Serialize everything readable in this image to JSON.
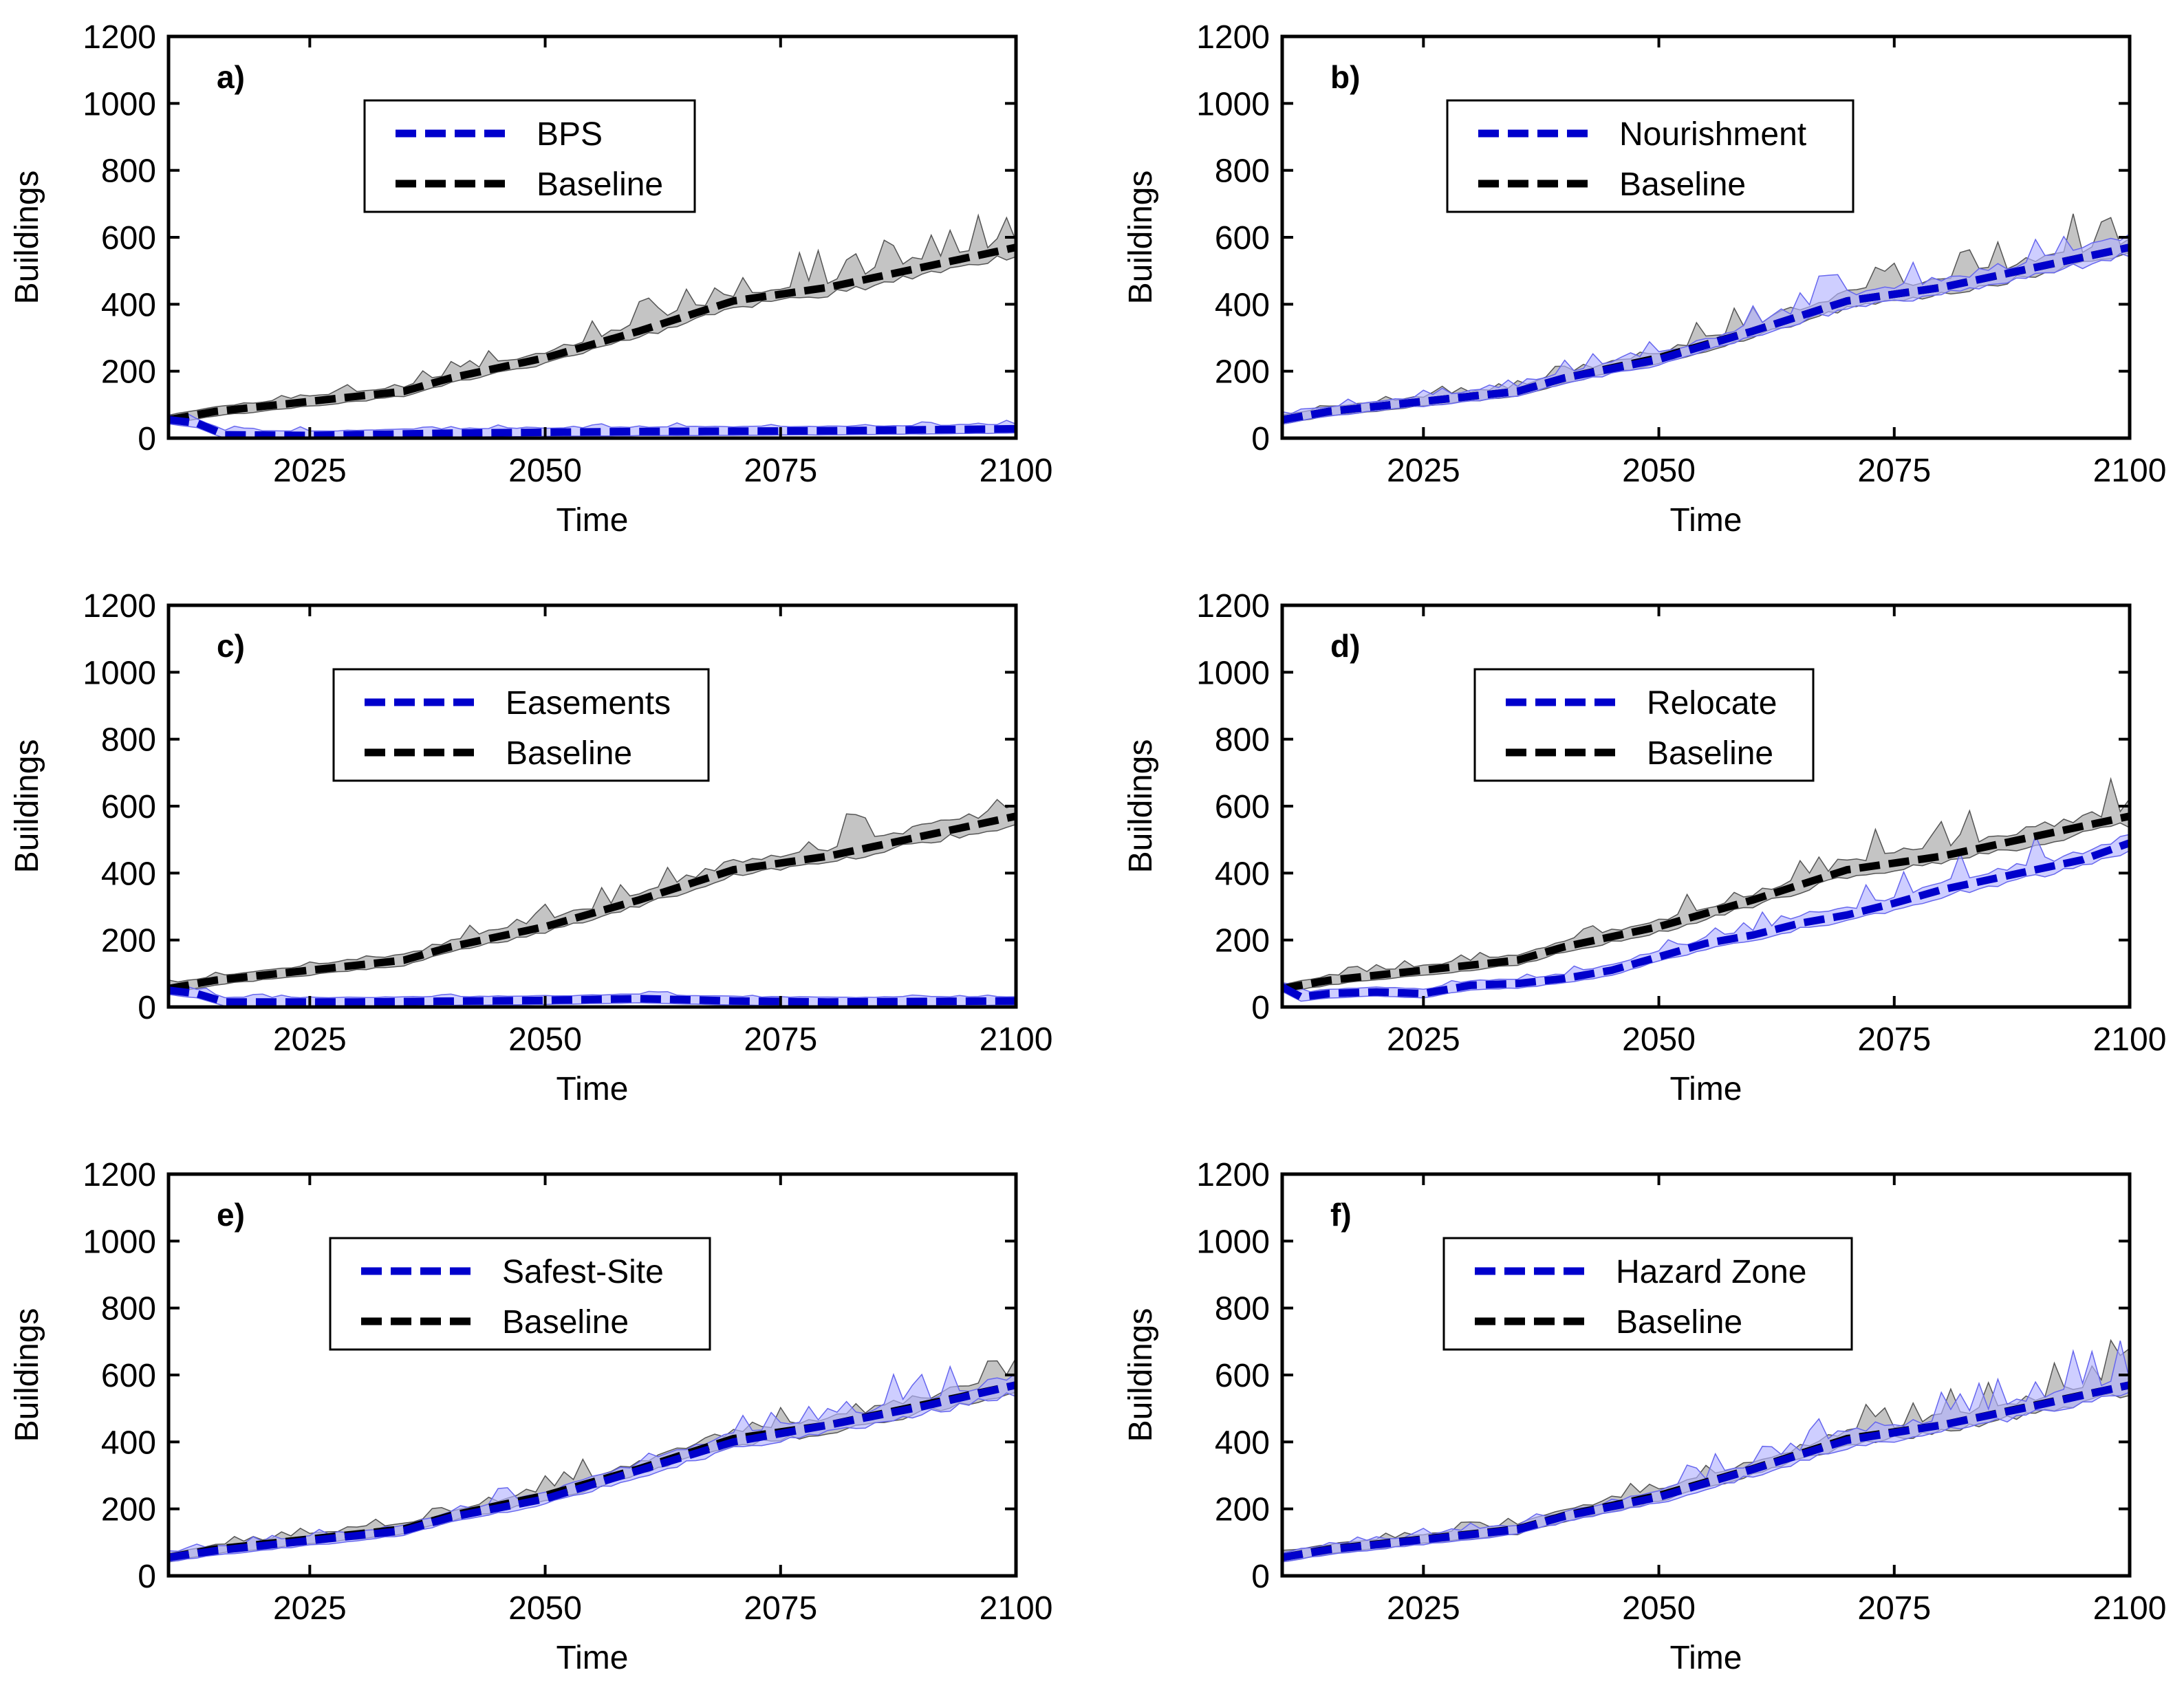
{
  "figure": {
    "shared": {
      "xlabel": "Time",
      "ylabel": "Buildings",
      "xlim": [
        2010,
        2100
      ],
      "ylim": [
        0,
        1200
      ],
      "xticks": [
        2025,
        2050,
        2075,
        2100
      ],
      "yticks": [
        0,
        200,
        400,
        600,
        800,
        1000,
        1200
      ],
      "colors": {
        "scenario": "#0000cc",
        "scenario_band": "#b4b4ff",
        "baseline": "#000000",
        "baseline_band": "#b0b0b0"
      }
    }
  },
  "chart_data": [
    {
      "type": "line",
      "panel": "a)",
      "legend_position": "upper-left",
      "series": [
        {
          "name": "BPS",
          "x": [
            2010,
            2013,
            2016,
            2025,
            2040,
            2060,
            2080,
            2100
          ],
          "y": [
            55,
            45,
            10,
            8,
            15,
            20,
            22,
            28
          ]
        },
        {
          "name": "Baseline",
          "x": [
            2010,
            2015,
            2025,
            2035,
            2040,
            2050,
            2060,
            2070,
            2080,
            2090,
            2100
          ],
          "y": [
            55,
            80,
            110,
            140,
            180,
            240,
            320,
            410,
            450,
            510,
            570
          ]
        }
      ]
    },
    {
      "type": "line",
      "panel": "b)",
      "legend_position": "upper-left",
      "series": [
        {
          "name": "Nourishment",
          "x": [
            2010,
            2015,
            2025,
            2035,
            2040,
            2050,
            2060,
            2070,
            2080,
            2090,
            2100
          ],
          "y": [
            55,
            80,
            110,
            140,
            180,
            235,
            320,
            410,
            450,
            510,
            570
          ]
        },
        {
          "name": "Baseline",
          "x": [
            2010,
            2015,
            2025,
            2035,
            2040,
            2050,
            2060,
            2070,
            2080,
            2090,
            2100
          ],
          "y": [
            55,
            80,
            110,
            140,
            180,
            240,
            320,
            410,
            450,
            510,
            570
          ]
        }
      ]
    },
    {
      "type": "line",
      "panel": "c)",
      "legend_position": "upper-left",
      "series": [
        {
          "name": "Easements",
          "x": [
            2010,
            2013,
            2016,
            2030,
            2050,
            2060,
            2070,
            2080,
            2100
          ],
          "y": [
            50,
            40,
            15,
            15,
            20,
            25,
            18,
            15,
            18
          ]
        },
        {
          "name": "Baseline",
          "x": [
            2010,
            2015,
            2025,
            2035,
            2040,
            2050,
            2060,
            2070,
            2080,
            2090,
            2100
          ],
          "y": [
            55,
            80,
            110,
            140,
            180,
            240,
            320,
            410,
            450,
            510,
            570
          ]
        }
      ]
    },
    {
      "type": "line",
      "panel": "d)",
      "legend_position": "upper-left",
      "series": [
        {
          "name": "Relocate",
          "x": [
            2010,
            2012,
            2015,
            2020,
            2025,
            2030,
            2035,
            2040,
            2045,
            2050,
            2055,
            2060,
            2065,
            2070,
            2075,
            2080,
            2085,
            2090,
            2095,
            2100
          ],
          "y": [
            60,
            30,
            40,
            45,
            40,
            65,
            70,
            85,
            110,
            150,
            190,
            215,
            250,
            275,
            310,
            350,
            380,
            410,
            440,
            490
          ]
        },
        {
          "name": "Baseline",
          "x": [
            2010,
            2015,
            2025,
            2035,
            2040,
            2050,
            2060,
            2070,
            2080,
            2090,
            2100
          ],
          "y": [
            55,
            80,
            110,
            140,
            180,
            240,
            320,
            410,
            450,
            510,
            570
          ]
        }
      ]
    },
    {
      "type": "line",
      "panel": "e)",
      "legend_position": "upper-left",
      "series": [
        {
          "name": "Safest-Site",
          "x": [
            2010,
            2015,
            2025,
            2035,
            2040,
            2050,
            2060,
            2070,
            2080,
            2090,
            2100
          ],
          "y": [
            55,
            75,
            105,
            135,
            175,
            230,
            315,
            400,
            450,
            505,
            570
          ]
        },
        {
          "name": "Baseline",
          "x": [
            2010,
            2015,
            2025,
            2035,
            2040,
            2050,
            2060,
            2070,
            2080,
            2090,
            2100
          ],
          "y": [
            55,
            80,
            110,
            140,
            180,
            240,
            320,
            410,
            450,
            510,
            570
          ]
        }
      ]
    },
    {
      "type": "line",
      "panel": "f)",
      "legend_position": "upper-left",
      "series": [
        {
          "name": "Hazard Zone",
          "x": [
            2010,
            2015,
            2025,
            2035,
            2040,
            2050,
            2060,
            2070,
            2080,
            2090,
            2100
          ],
          "y": [
            55,
            78,
            108,
            138,
            178,
            235,
            318,
            405,
            450,
            508,
            570
          ]
        },
        {
          "name": "Baseline",
          "x": [
            2010,
            2015,
            2025,
            2035,
            2040,
            2050,
            2060,
            2070,
            2080,
            2090,
            2100
          ],
          "y": [
            55,
            80,
            110,
            140,
            180,
            240,
            320,
            410,
            450,
            510,
            570
          ]
        }
      ]
    }
  ]
}
